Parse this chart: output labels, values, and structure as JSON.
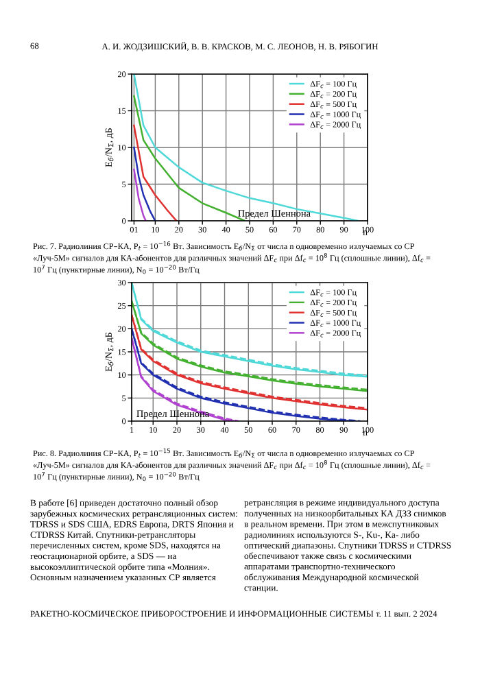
{
  "chart_data": [
    {
      "type": "line",
      "ylabel": "E$_{б}$/N$_{Σ}$, дБ",
      "xlabel": "n",
      "xlim": [
        0,
        100
      ],
      "ylim": [
        0,
        20
      ],
      "xticks": [
        {
          "value": 1,
          "label": "01"
        },
        10,
        20,
        30,
        40,
        50,
        60,
        70,
        80,
        90,
        100
      ],
      "yticks": [
        0,
        5,
        10,
        15,
        20
      ],
      "grid": true,
      "legend": "top right",
      "line_style": "solid",
      "annotations": [
        "Предел Шеннона",
        "Рис. 7. Радиолиния СР–КА, P$_{t}$ = 10$^{−16}$ Вт. Зависимость E$_{б}$/N$_{Σ}$ от числа n одновременно излучаемых со СР «Луч-5М» сигналов для КА-абонентов для различных значений ΔF$_{c}$ при Δf$_{c}$ = 10$^{8}$ Гц (сплошные линии), Δf$_{c}$ = 10$^{7}$ Гц (пунктирные линии), N$_{0}$ = 10$^{−20}$ Вт/Гц"
      ],
      "series": [
        {
          "name": "ΔF$_{c}$ = 100 Гц",
          "color": "#4fd8d8",
          "x": [
            1,
            5,
            10,
            20,
            30,
            40,
            50,
            60,
            70,
            80,
            90,
            96
          ],
          "values": [
            20,
            13,
            10,
            7.3,
            5.2,
            4.1,
            3.1,
            2.4,
            1.6,
            1.0,
            0.4,
            0
          ]
        },
        {
          "name": "ΔF$_{c}$ = 200 Гц",
          "color": "#44b030",
          "x": [
            1,
            5,
            10,
            20,
            30,
            40,
            48
          ],
          "values": [
            17,
            11,
            8.5,
            4.5,
            2.4,
            1.1,
            0
          ]
        },
        {
          "name": "ΔF$_{c}$ = 500 Гц",
          "color": "#e03030",
          "x": [
            1,
            5,
            10,
            15,
            19
          ],
          "values": [
            13,
            6,
            3.5,
            1.5,
            0
          ]
        },
        {
          "name": "ΔF$_{c}$ = 1000 Гц",
          "color": "#2030b0",
          "x": [
            1,
            3,
            5,
            8,
            10
          ],
          "values": [
            10,
            6,
            3.5,
            1.2,
            0
          ]
        },
        {
          "name": "ΔF$_{c}$ = 2000 Гц",
          "color": "#b040d0",
          "x": [
            1,
            3,
            5,
            6
          ],
          "values": [
            7,
            3,
            0.7,
            0
          ]
        }
      ]
    },
    {
      "type": "line",
      "ylabel": "E$_{б}$/N$_{Σ}$, дБ",
      "xlabel": "n",
      "xlim": [
        1,
        100
      ],
      "ylim": [
        0,
        30
      ],
      "xticks": [
        1,
        10,
        20,
        30,
        40,
        50,
        60,
        70,
        80,
        90,
        100
      ],
      "yticks": [
        0,
        5,
        10,
        15,
        20,
        25,
        30
      ],
      "grid": true,
      "legend": "top right",
      "line_style": "solid",
      "annotations": [
        "Предел Шеннона",
        "Рис. 8. Радиолиния СР–КА, P$_{t}$ = 10$^{−15}$ Вт. Зависимость E$_{б}$/N$_{Σ}$ от числа n одновременно излучаемых со СР «Луч-5М» сигналов для КА-абонентов для различных значений ΔF$_{c}$ при Δf$_{c}$ = 10$^{8}$ Гц (сплошные линии), Δf$_{c}$ = 10$^{7}$ Гц (пунктирные линии), N$_{0}$ = 10$^{−20}$ Вт/Гц"
      ],
      "series": [
        {
          "name": "ΔF$_{c}$ = 100 Гц",
          "color": "#4fd8d8",
          "x": [
            1,
            5,
            10,
            20,
            30,
            40,
            50,
            60,
            70,
            80,
            90,
            100
          ],
          "values": [
            30,
            22,
            19.5,
            17,
            15,
            14,
            13,
            12,
            11.2,
            10.6,
            10,
            9.6
          ]
        },
        {
          "name": "ΔF$_{c}$ = 200 Гц",
          "color": "#44b030",
          "x": [
            1,
            5,
            10,
            20,
            30,
            40,
            50,
            60,
            70,
            80,
            90,
            100
          ],
          "values": [
            26,
            19,
            16.5,
            13.5,
            11.8,
            10.5,
            9.7,
            8.8,
            8.1,
            7.5,
            7,
            6.5
          ]
        },
        {
          "name": "ΔF$_{c}$ = 500 Гц",
          "color": "#e03030",
          "x": [
            1,
            5,
            10,
            20,
            30,
            40,
            50,
            60,
            70,
            80,
            90,
            100
          ],
          "values": [
            23,
            15.5,
            13,
            10,
            8.2,
            7,
            6,
            5,
            4.3,
            3.6,
            3,
            2.5
          ]
        },
        {
          "name": "ΔF$_{c}$ = 1000 Гц",
          "color": "#2030b0",
          "x": [
            1,
            5,
            10,
            20,
            30,
            40,
            50,
            60,
            70,
            80,
            90,
            95
          ],
          "values": [
            20,
            12.5,
            10,
            7,
            5,
            3.8,
            2.8,
            1.8,
            1.1,
            0.5,
            0.1,
            0
          ]
        },
        {
          "name": "ΔF$_{c}$ = 2000 Гц",
          "color": "#b040d0",
          "x": [
            1,
            5,
            10,
            20,
            30,
            40,
            45
          ],
          "values": [
            18,
            9.5,
            6.5,
            3.5,
            1.8,
            0.3,
            0
          ]
        },
        {
          "color": "#4fd8d8",
          "line_style": "dashed",
          "x": [
            1,
            5,
            10,
            20,
            30,
            40,
            50,
            60,
            70,
            80,
            90,
            100
          ],
          "values": [
            30,
            22.2,
            19.8,
            17.3,
            15.3,
            14.3,
            13.3,
            12.3,
            11.5,
            10.9,
            10.3,
            9.9
          ]
        },
        {
          "color": "#44b030",
          "line_style": "dashed",
          "x": [
            1,
            5,
            10,
            20,
            30,
            40,
            50,
            60,
            70,
            80,
            90,
            100
          ],
          "values": [
            26,
            19.2,
            16.8,
            13.8,
            12.1,
            10.8,
            10,
            9.1,
            8.4,
            7.8,
            7.3,
            6.8
          ]
        },
        {
          "color": "#e03030",
          "line_style": "dashed",
          "x": [
            1,
            5,
            10,
            20,
            30,
            40,
            50,
            60,
            70,
            80,
            90,
            100
          ],
          "values": [
            23,
            15.7,
            13.3,
            10.3,
            8.5,
            7.3,
            6.3,
            5.3,
            4.6,
            3.9,
            3.3,
            2.8
          ]
        },
        {
          "color": "#2030b0",
          "line_style": "dashed",
          "x": [
            1,
            5,
            10,
            20,
            30,
            40,
            50,
            60,
            70,
            80,
            90,
            97
          ],
          "values": [
            20,
            12.7,
            10.3,
            7.3,
            5.3,
            4.1,
            3.1,
            2.1,
            1.4,
            0.8,
            0.3,
            0
          ]
        },
        {
          "color": "#b040d0",
          "line_style": "dashed",
          "x": [
            1,
            5,
            10,
            20,
            30,
            40,
            46
          ],
          "values": [
            18,
            9.7,
            6.8,
            3.8,
            2.1,
            0.6,
            0
          ]
        }
      ]
    },
    {
      "type": "other",
      "annotations": [
        "68",
        "А. И. ЖОДЗИШСКИЙ, В. В. КРАСКОВ, М. С. ЛЕОНОВ, Н. В. РЯБОГИН",
        "В работе [6] приведен достаточно полный обзор зарубежных космических ретрансляционных систем: TDRSS и SDS США, EDRS Европа, DRTS Япония и CTDRSS Китай. Спутники-ретрансляторы перечисленных систем, кроме SDS, находятся на геостационарной орбите, а SDS — на высокоэллиптической орбите типа «Молния». Основным назначением указанных СР является",
        "ретрансляция в режиме индивидуального доступа полученных на низкоорбитальных КА ДЗЗ снимков в реальном времени. При этом в межспутниковых радиолиниях используются S-, Ku-, Ka- либо оптический диапазоны. Спутники TDRSS и CTDRSS обеспечивают также связь с космическими аппаратами транспортно-технического обслуживания Международной космической станции.",
        "РАКЕТНО-КОСМИЧЕСКОЕ ПРИБОРОСТРОЕНИЕ И ИНФОРМАЦИОННЫЕ СИСТЕМЫ т. 11 вып. 2 2024"
      ]
    }
  ]
}
